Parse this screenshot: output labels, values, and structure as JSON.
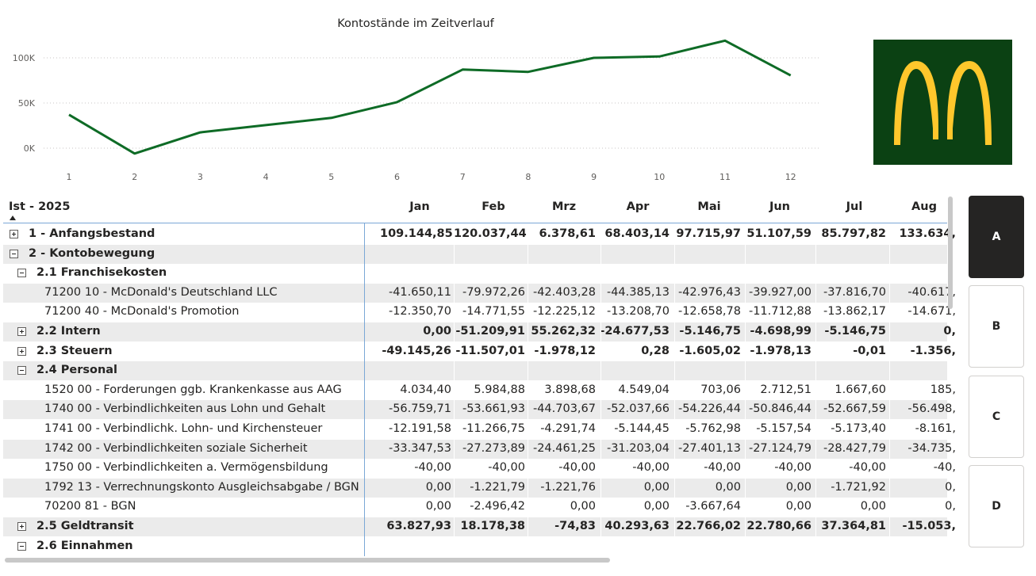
{
  "chart_data": {
    "type": "line",
    "title": "Kontostände im Zeitverlauf",
    "x": [
      "1",
      "2",
      "3",
      "4",
      "5",
      "6",
      "7",
      "8",
      "9",
      "10",
      "11",
      "12"
    ],
    "series": [
      {
        "name": "Kontostand",
        "values": [
          37000,
          -6000,
          17500,
          25500,
          33500,
          51000,
          87000,
          84500,
          100000,
          101500,
          119000,
          80500
        ]
      }
    ],
    "yticks": [
      "100K",
      "50K",
      "0K"
    ],
    "ytick_values": [
      100000,
      50000,
      0
    ],
    "ylim": [
      -10000,
      125000
    ],
    "grid": true,
    "colors": {
      "line": "#0e6b26",
      "grid": "#c8c6c4",
      "text": "#605e5c"
    }
  },
  "logo": {
    "name": "mcdonalds-logo",
    "bg": "#0b4113",
    "arch": "#ffc72c"
  },
  "matrix": {
    "corner_label": "Ist - 2025",
    "months": [
      "Jan",
      "Feb",
      "Mrz",
      "Apr",
      "Mai",
      "Jun",
      "Jul",
      "Aug"
    ],
    "rows": [
      {
        "label": "1 - Anfangsbestand",
        "level": 0,
        "toggle": "plus",
        "bold": true,
        "alt": false,
        "values": [
          "109.144,85",
          "120.037,44",
          "6.378,61",
          "68.403,14",
          "97.715,97",
          "51.107,59",
          "85.797,82",
          "133.634,"
        ]
      },
      {
        "label": "2 - Kontobewegung",
        "level": 0,
        "toggle": "minus",
        "bold": true,
        "alt": true,
        "values": [
          "",
          "",
          "",
          "",
          "",
          "",
          "",
          ""
        ]
      },
      {
        "label": "2.1 Franchisekosten",
        "level": 1,
        "toggle": "minus",
        "bold": true,
        "alt": false,
        "values": [
          "",
          "",
          "",
          "",
          "",
          "",
          "",
          ""
        ]
      },
      {
        "label": "71200 10 - McDonald's Deutschland LLC",
        "level": 2,
        "toggle": "",
        "bold": false,
        "alt": true,
        "values": [
          "-41.650,11",
          "-79.972,26",
          "-42.403,28",
          "-44.385,13",
          "-42.976,43",
          "-39.927,00",
          "-37.816,70",
          "-40.617,"
        ]
      },
      {
        "label": "71200 40 - McDonald's Promotion",
        "level": 2,
        "toggle": "",
        "bold": false,
        "alt": false,
        "values": [
          "-12.350,70",
          "-14.771,55",
          "-12.225,12",
          "-13.208,70",
          "-12.658,78",
          "-11.712,88",
          "-13.862,17",
          "-14.671,"
        ]
      },
      {
        "label": "2.2 Intern",
        "level": 1,
        "toggle": "plus",
        "bold": true,
        "alt": true,
        "values": [
          "0,00",
          "-51.209,91",
          "55.262,32",
          "-24.677,53",
          "-5.146,75",
          "-4.698,99",
          "-5.146,75",
          "0,"
        ]
      },
      {
        "label": "2.3 Steuern",
        "level": 1,
        "toggle": "plus",
        "bold": true,
        "alt": false,
        "values": [
          "-49.145,26",
          "-11.507,01",
          "-1.978,12",
          "0,28",
          "-1.605,02",
          "-1.978,13",
          "-0,01",
          "-1.356,"
        ]
      },
      {
        "label": "2.4 Personal",
        "level": 1,
        "toggle": "minus",
        "bold": true,
        "alt": true,
        "values": [
          "",
          "",
          "",
          "",
          "",
          "",
          "",
          ""
        ]
      },
      {
        "label": "1520 00 - Forderungen ggb. Krankenkasse aus AAG",
        "level": 2,
        "toggle": "",
        "bold": false,
        "alt": false,
        "values": [
          "4.034,40",
          "5.984,88",
          "3.898,68",
          "4.549,04",
          "703,06",
          "2.712,51",
          "1.667,60",
          "185,"
        ]
      },
      {
        "label": "1740 00 - Verbindlichkeiten aus Lohn und Gehalt",
        "level": 2,
        "toggle": "",
        "bold": false,
        "alt": true,
        "values": [
          "-56.759,71",
          "-53.661,93",
          "-44.703,67",
          "-52.037,66",
          "-54.226,44",
          "-50.846,44",
          "-52.667,59",
          "-56.498,"
        ]
      },
      {
        "label": "1741 00 - Verbindlichk. Lohn- und Kirchensteuer",
        "level": 2,
        "toggle": "",
        "bold": false,
        "alt": false,
        "values": [
          "-12.191,58",
          "-11.266,75",
          "-4.291,74",
          "-5.144,45",
          "-5.762,98",
          "-5.157,54",
          "-5.173,40",
          "-8.161,"
        ]
      },
      {
        "label": "1742 00 - Verbindlichkeiten soziale Sicherheit",
        "level": 2,
        "toggle": "",
        "bold": false,
        "alt": true,
        "values": [
          "-33.347,53",
          "-27.273,89",
          "-24.461,25",
          "-31.203,04",
          "-27.401,13",
          "-27.124,79",
          "-28.427,79",
          "-34.735,"
        ]
      },
      {
        "label": "1750 00 - Verbindlichkeiten a. Vermögensbildung",
        "level": 2,
        "toggle": "",
        "bold": false,
        "alt": false,
        "values": [
          "-40,00",
          "-40,00",
          "-40,00",
          "-40,00",
          "-40,00",
          "-40,00",
          "-40,00",
          "-40,"
        ]
      },
      {
        "label": "1792 13 - Verrechnungskonto Ausgleichsabgabe / BGN",
        "level": 2,
        "toggle": "",
        "bold": false,
        "alt": true,
        "values": [
          "0,00",
          "-1.221,79",
          "-1.221,76",
          "0,00",
          "0,00",
          "0,00",
          "-1.721,92",
          "0,"
        ]
      },
      {
        "label": "70200 81 - BGN",
        "level": 2,
        "toggle": "",
        "bold": false,
        "alt": false,
        "values": [
          "0,00",
          "-2.496,42",
          "0,00",
          "0,00",
          "-3.667,64",
          "0,00",
          "0,00",
          "0,"
        ]
      },
      {
        "label": "2.5 Geldtransit",
        "level": 1,
        "toggle": "plus",
        "bold": true,
        "alt": true,
        "values": [
          "63.827,93",
          "18.178,38",
          "-74,83",
          "40.293,63",
          "22.766,02",
          "22.780,66",
          "37.364,81",
          "-15.053,"
        ]
      },
      {
        "label": "2.6 Einnahmen",
        "level": 1,
        "toggle": "minus",
        "bold": true,
        "alt": false,
        "values": [
          "",
          "",
          "",
          "",
          "",
          "",
          "",
          ""
        ]
      }
    ]
  },
  "slicer": {
    "buttons": [
      {
        "label": "A",
        "selected": true
      },
      {
        "label": "B",
        "selected": false
      },
      {
        "label": "C",
        "selected": false
      },
      {
        "label": "D",
        "selected": false
      }
    ]
  }
}
